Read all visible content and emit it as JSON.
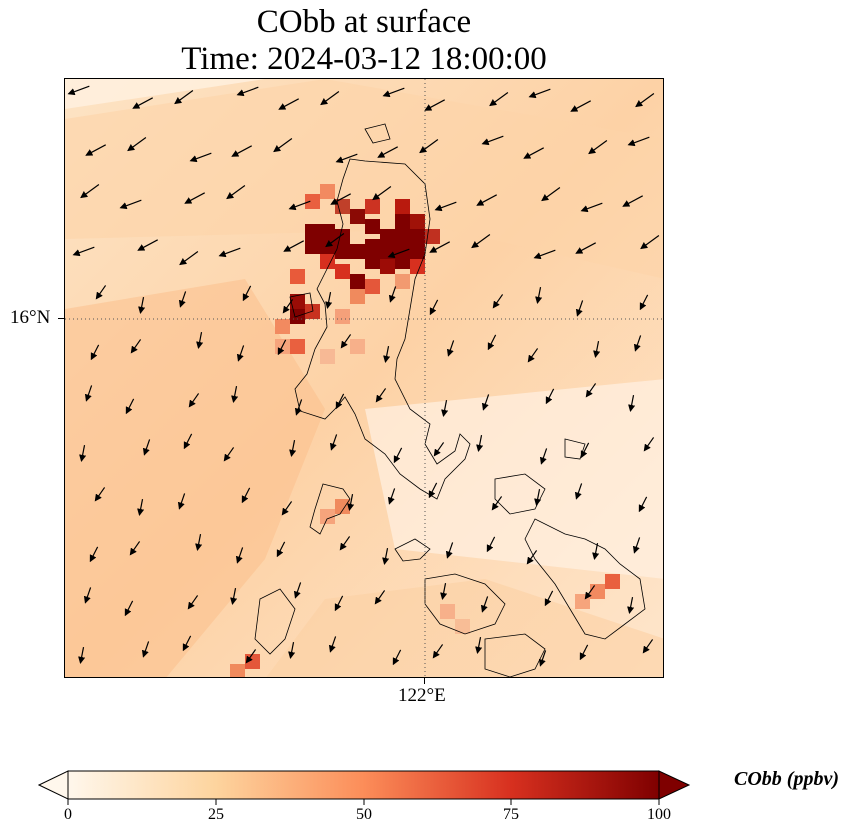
{
  "title": {
    "line1": "CObb at surface",
    "line2": "Time: 2024-03-12 18:00:00"
  },
  "map": {
    "latitude_tick_label": "16°N",
    "longitude_tick_label": "122°E",
    "gridlines": "dotted",
    "variable": "CObb",
    "wind_vectors": "shown as black arrows, predominantly blowing from northeast toward southwest",
    "coastlines": "Luzon and central Philippine islands outlined in black"
  },
  "colorbar": {
    "units_label": "CObb (ppbv)",
    "min": 0,
    "max": 100,
    "tick_labels": [
      "0",
      "25",
      "50",
      "75",
      "100"
    ],
    "extend": "both",
    "colormap": [
      "#fff7ec",
      "#fdd49e",
      "#fc8d59",
      "#d7301f",
      "#7f0000"
    ]
  }
}
